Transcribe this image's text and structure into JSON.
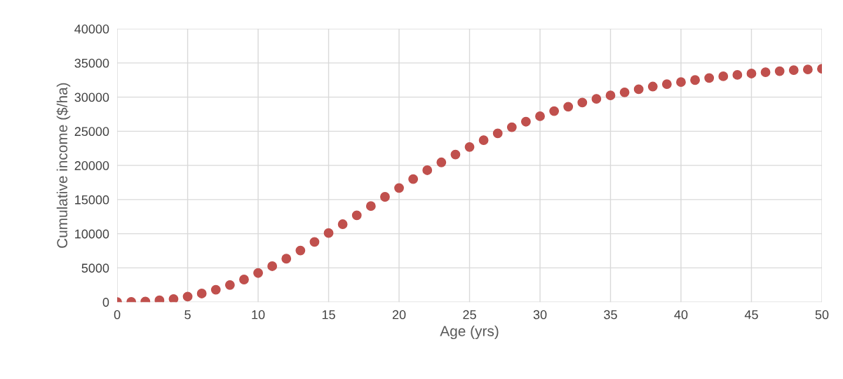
{
  "chart_data": {
    "type": "scatter",
    "xlabel": "Age (yrs)",
    "ylabel": "Cumulative income ($/ha)",
    "x": [
      0,
      1,
      2,
      3,
      4,
      5,
      6,
      7,
      8,
      9,
      10,
      11,
      12,
      13,
      14,
      15,
      16,
      17,
      18,
      19,
      20,
      21,
      22,
      23,
      24,
      25,
      26,
      27,
      28,
      29,
      30,
      31,
      32,
      33,
      34,
      35,
      36,
      37,
      38,
      39,
      40,
      41,
      42,
      43,
      44,
      45,
      46,
      47,
      48,
      49,
      50
    ],
    "series": [
      {
        "color": "#c0504d",
        "values": [
          0,
          20,
          80,
          250,
          450,
          800,
          1250,
          1800,
          2500,
          3300,
          4250,
          5250,
          6350,
          7550,
          8800,
          10100,
          11400,
          12700,
          14050,
          15400,
          16700,
          18000,
          19300,
          20450,
          21600,
          22700,
          23700,
          24700,
          25600,
          26400,
          27200,
          27950,
          28600,
          29200,
          29750,
          30250,
          30700,
          31150,
          31550,
          31900,
          32200,
          32500,
          32800,
          33050,
          33250,
          33450,
          33650,
          33800,
          33950,
          34050,
          34150
        ]
      }
    ],
    "xlim": [
      0,
      50
    ],
    "xticks": [
      0,
      5,
      10,
      15,
      20,
      25,
      30,
      35,
      40,
      45,
      50
    ],
    "ylim": [
      0,
      40000
    ],
    "yticks": [
      0,
      5000,
      10000,
      15000,
      20000,
      25000,
      30000,
      35000,
      40000
    ],
    "grid": true,
    "marker": "circle",
    "legend": false
  }
}
